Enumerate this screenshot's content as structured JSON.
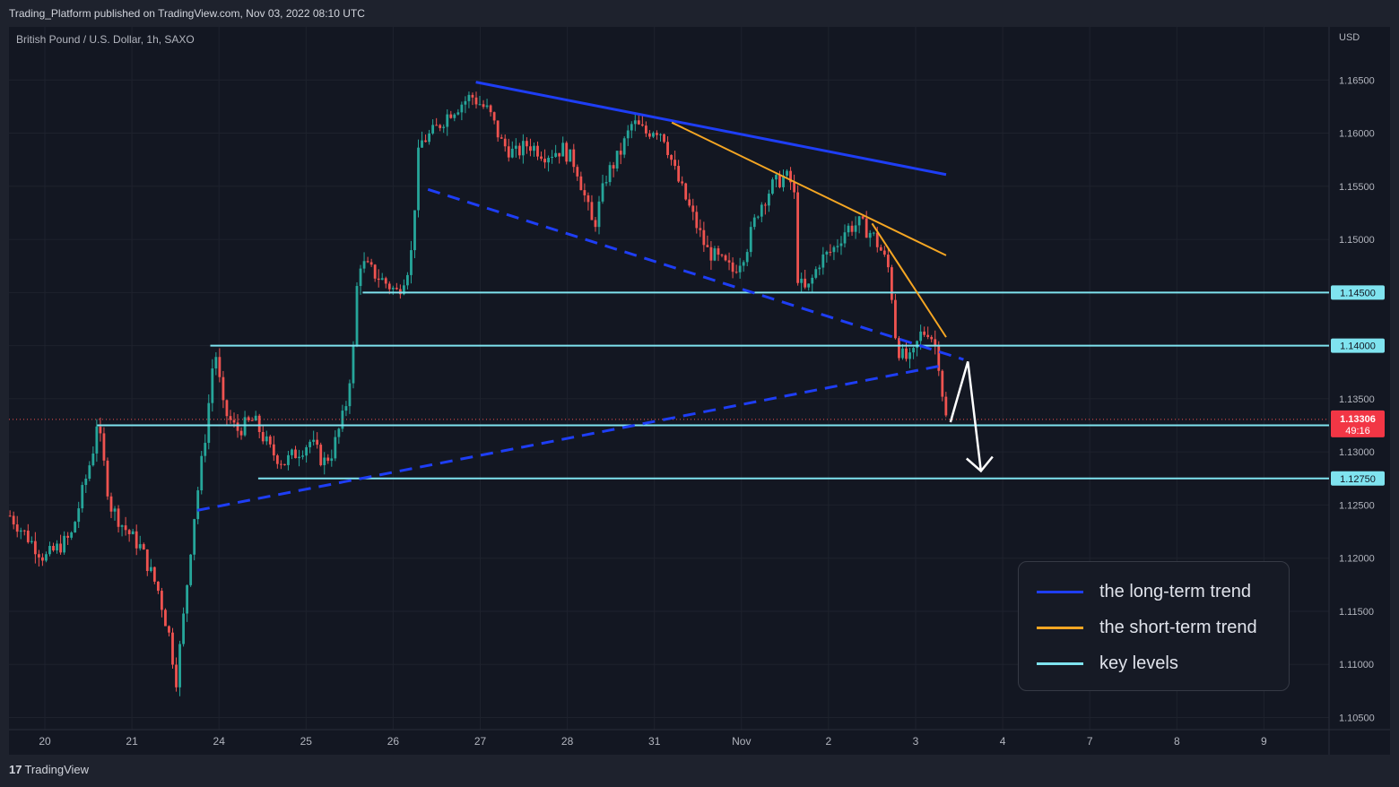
{
  "header": {
    "published_text": "Trading_Platform published on TradingView.com, Nov 03, 2022 08:10 UTC"
  },
  "symbol_label": "British Pound / U.S. Dollar, 1h, SAXO",
  "currency_label": "USD",
  "footer": {
    "logo_mark": "17",
    "logo_text": "TradingView"
  },
  "colors": {
    "background": "#131722",
    "grid": "#1e222d",
    "candle_up": "#26a69a",
    "candle_down": "#ef5350",
    "long_term_trend": "#1e3ef5",
    "short_term_trend": "#f5a623",
    "key_levels": "#7fe3ef",
    "projection_arrow": "#ffffff",
    "price_badge": "#f23645"
  },
  "chart_data": {
    "type": "candlestick",
    "title": "British Pound / U.S. Dollar, 1h, SAXO",
    "y_axis_label": "USD",
    "ylim": [
      1.1015,
      1.17
    ],
    "y_ticks": [
      1.165,
      1.16,
      1.155,
      1.15,
      1.145,
      1.14,
      1.135,
      1.13,
      1.125,
      1.12,
      1.115,
      1.11,
      1.105
    ],
    "y_tick_labels": [
      "1.16500",
      "1.16000",
      "1.15500",
      "1.15000",
      "1.14500",
      "1.14000",
      "1.13500",
      "1.13000",
      "1.12500",
      "1.12000",
      "1.11500",
      "1.11000",
      "1.10500"
    ],
    "x_ticks": [
      {
        "label": "20",
        "day": 0
      },
      {
        "label": "21",
        "day": 1
      },
      {
        "label": "24",
        "day": 2
      },
      {
        "label": "25",
        "day": 3
      },
      {
        "label": "26",
        "day": 4
      },
      {
        "label": "27",
        "day": 5
      },
      {
        "label": "28",
        "day": 6
      },
      {
        "label": "31",
        "day": 7
      },
      {
        "label": "Nov",
        "day": 8
      },
      {
        "label": "2",
        "day": 9
      },
      {
        "label": "3",
        "day": 10
      },
      {
        "label": "4",
        "day": 11
      },
      {
        "label": "7",
        "day": 12
      },
      {
        "label": "8",
        "day": 13
      },
      {
        "label": "9",
        "day": 14
      }
    ],
    "grid": true,
    "price_path": [
      [
        -0.4,
        1.124
      ],
      [
        -0.25,
        1.1225
      ],
      [
        0,
        1.12
      ],
      [
        0.3,
        1.122
      ],
      [
        0.55,
        1.13
      ],
      [
        0.6,
        1.133
      ],
      [
        0.75,
        1.125
      ],
      [
        0.9,
        1.123
      ],
      [
        1.1,
        1.121
      ],
      [
        1.3,
        1.117
      ],
      [
        1.45,
        1.112
      ],
      [
        1.5,
        1.108
      ],
      [
        1.6,
        1.115
      ],
      [
        1.7,
        1.123
      ],
      [
        1.85,
        1.132
      ],
      [
        1.95,
        1.14
      ],
      [
        2.05,
        1.134
      ],
      [
        2.2,
        1.132
      ],
      [
        2.4,
        1.133
      ],
      [
        2.6,
        1.13
      ],
      [
        2.75,
        1.129
      ],
      [
        2.9,
        1.13
      ],
      [
        3.05,
        1.131
      ],
      [
        3.2,
        1.129
      ],
      [
        3.3,
        1.13
      ],
      [
        3.45,
        1.134
      ],
      [
        3.55,
        1.14
      ],
      [
        3.6,
        1.148
      ],
      [
        3.75,
        1.147
      ],
      [
        3.9,
        1.146
      ],
      [
        4.05,
        1.145
      ],
      [
        4.2,
        1.148
      ],
      [
        4.3,
        1.159
      ],
      [
        4.45,
        1.16
      ],
      [
        4.65,
        1.162
      ],
      [
        4.9,
        1.1635
      ],
      [
        5.1,
        1.162
      ],
      [
        5.25,
        1.159
      ],
      [
        5.4,
        1.158
      ],
      [
        5.55,
        1.159
      ],
      [
        5.75,
        1.158
      ],
      [
        5.95,
        1.1585
      ],
      [
        6.1,
        1.157
      ],
      [
        6.3,
        1.151
      ],
      [
        6.45,
        1.156
      ],
      [
        6.6,
        1.158
      ],
      [
        6.75,
        1.161
      ],
      [
        6.9,
        1.16
      ],
      [
        7.0,
        1.1605
      ],
      [
        7.1,
        1.16
      ],
      [
        7.25,
        1.156
      ],
      [
        7.45,
        1.152
      ],
      [
        7.6,
        1.149
      ],
      [
        7.75,
        1.148
      ],
      [
        7.9,
        1.147
      ],
      [
        8.05,
        1.149
      ],
      [
        8.2,
        1.153
      ],
      [
        8.35,
        1.155
      ],
      [
        8.5,
        1.156
      ],
      [
        8.6,
        1.155
      ],
      [
        8.65,
        1.146
      ],
      [
        8.75,
        1.145
      ],
      [
        8.9,
        1.148
      ],
      [
        9.05,
        1.149
      ],
      [
        9.2,
        1.151
      ],
      [
        9.35,
        1.1515
      ],
      [
        9.5,
        1.1505
      ],
      [
        9.6,
        1.149
      ],
      [
        9.7,
        1.147
      ],
      [
        9.78,
        1.14
      ],
      [
        9.85,
        1.139
      ],
      [
        9.95,
        1.1385
      ],
      [
        10.05,
        1.141
      ],
      [
        10.15,
        1.1415
      ],
      [
        10.25,
        1.1395
      ],
      [
        10.3,
        1.136
      ],
      [
        10.35,
        1.1331
      ]
    ],
    "last_price": {
      "value": 1.13306,
      "label": "1.13306",
      "countdown": "49:16"
    },
    "key_levels": [
      {
        "value": 1.145,
        "label": "1.14500",
        "from_day": 3.65
      },
      {
        "value": 1.14,
        "label": "1.14000",
        "from_day": 1.9
      },
      {
        "value": 1.1325,
        "label": "1.13250",
        "from_day": 0.6
      },
      {
        "value": 1.1275,
        "label": "1.12750",
        "from_day": 2.45
      }
    ],
    "trendlines": [
      {
        "name": "long-term resistance",
        "style": "solid",
        "color": "long_term_trend",
        "points": [
          [
            4.95,
            1.1648
          ],
          [
            10.35,
            1.1561
          ]
        ]
      },
      {
        "name": "long-term channel bottom",
        "style": "dashed",
        "color": "long_term_trend",
        "points": [
          [
            4.4,
            1.1547
          ],
          [
            10.55,
            1.1387
          ]
        ]
      },
      {
        "name": "long-term support",
        "style": "dashed",
        "color": "long_term_trend",
        "points": [
          [
            1.75,
            1.1245
          ],
          [
            10.35,
            1.1382
          ]
        ]
      },
      {
        "name": "short-term trend",
        "style": "solid",
        "color": "short_term_trend",
        "points": [
          [
            7.2,
            1.161
          ],
          [
            10.35,
            1.1485
          ]
        ]
      },
      {
        "name": "short-term trend steep",
        "style": "solid",
        "color": "short_term_trend",
        "points": [
          [
            9.5,
            1.1515
          ],
          [
            10.35,
            1.1408
          ]
        ]
      }
    ],
    "projection_arrow": {
      "points": [
        [
          10.4,
          1.1328
        ],
        [
          10.6,
          1.1385
        ],
        [
          10.75,
          1.1282
        ]
      ]
    },
    "legend": [
      {
        "label": "the long-term trend",
        "color": "long_term_trend"
      },
      {
        "label": "the short-term trend",
        "color": "short_term_trend"
      },
      {
        "label": "key levels",
        "color": "key_levels"
      }
    ],
    "legend_position": "bottom-right"
  }
}
